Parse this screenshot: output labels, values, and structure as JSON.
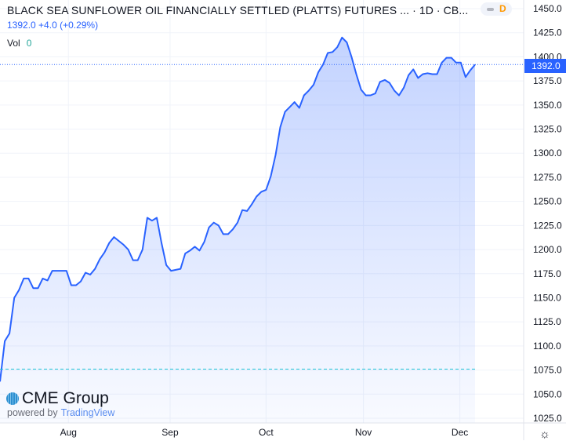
{
  "header": {
    "title": "BLACK SEA SUNFLOWER OIL FINANCIALLY SETTLED (PLATTS) FUTURES ... · 1D · CB...",
    "price": "1392.0",
    "change": "+4.0 (+0.29%)",
    "vol_label": "Vol",
    "vol_value": "0",
    "interval_badge": "D"
  },
  "branding": {
    "logo": "CME Group",
    "powered_by": "powered by",
    "provider": "TradingView"
  },
  "settings_icon": "gear-icon",
  "colors": {
    "line": "#2962ff",
    "fill": "#2962ff",
    "last_price": "#2962ff",
    "base_line": "#26c6da",
    "grid": "#f0f3fa"
  },
  "chart_data": {
    "type": "area",
    "title": "BLACK SEA SUNFLOWER OIL FINANCIALLY SETTLED (PLATTS) FUTURES",
    "interval": "1D",
    "ylim": [
      1025,
      1450
    ],
    "yticks": [
      1025,
      1050,
      1075,
      1100,
      1125,
      1150,
      1175,
      1200,
      1225,
      1250,
      1275,
      1300,
      1325,
      1350,
      1375,
      1400,
      1425,
      1450
    ],
    "xticks": [
      {
        "label": "Aug",
        "index": 14.4
      },
      {
        "label": "Sep",
        "index": 35.8
      },
      {
        "label": "Oct",
        "index": 56
      },
      {
        "label": "Nov",
        "index": 76.5
      },
      {
        "label": "Dec",
        "index": 96.8
      }
    ],
    "last_price": 1392.0,
    "base_value": 1076,
    "values": [
      1063,
      1105,
      1113,
      1150,
      1158,
      1170,
      1170,
      1160,
      1160,
      1170,
      1168,
      1178,
      1178,
      1178,
      1178,
      1163,
      1163,
      1167,
      1176,
      1174,
      1180,
      1190,
      1197,
      1207,
      1213,
      1209,
      1205,
      1200,
      1189,
      1189,
      1200,
      1233,
      1230,
      1233,
      1207,
      1184,
      1178,
      1179,
      1180,
      1196,
      1199,
      1203,
      1199,
      1208,
      1223,
      1228,
      1225,
      1216,
      1216,
      1221,
      1228,
      1241,
      1240,
      1247,
      1255,
      1260,
      1262,
      1276,
      1298,
      1327,
      1343,
      1348,
      1353,
      1347,
      1360,
      1365,
      1371,
      1384,
      1392,
      1404,
      1405,
      1410,
      1420,
      1415,
      1400,
      1382,
      1366,
      1360,
      1360,
      1362,
      1374,
      1376,
      1373,
      1365,
      1360,
      1368,
      1381,
      1387,
      1378,
      1382,
      1383,
      1382,
      1382,
      1394,
      1399,
      1399,
      1394,
      1394,
      1379,
      1386,
      1392
    ]
  }
}
